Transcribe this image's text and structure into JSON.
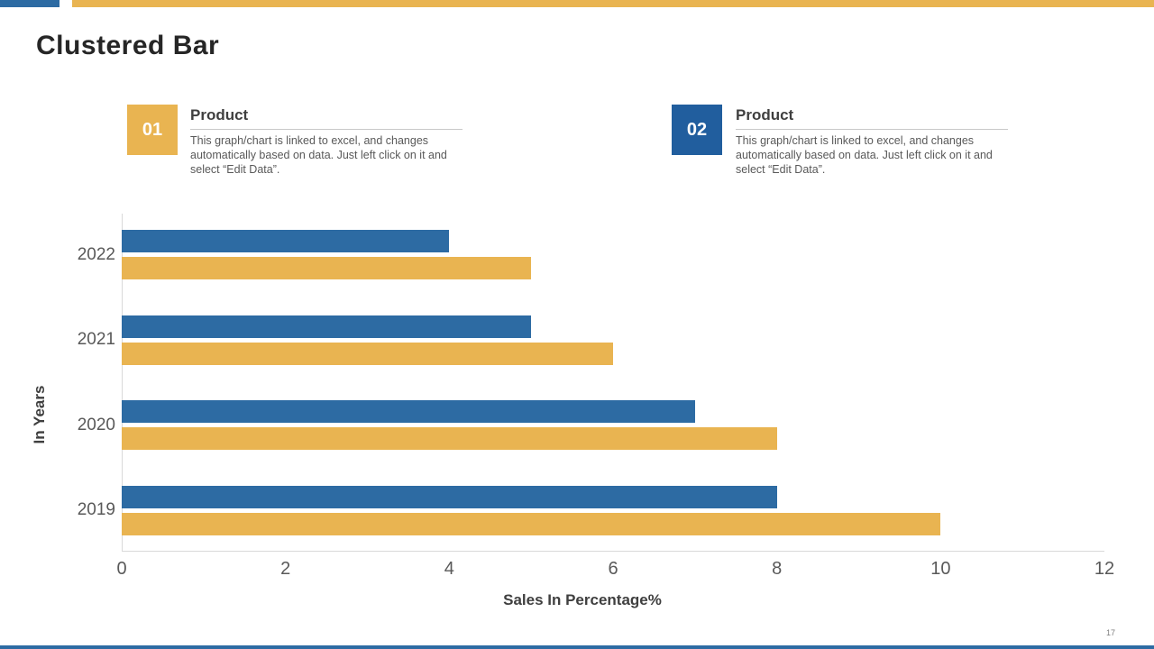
{
  "slide": {
    "title": "Clustered Bar",
    "page_number": "17"
  },
  "colors": {
    "blue": "#2D6BA3",
    "legend_blue": "#215E9E",
    "yellow": "#E9B451"
  },
  "legend": [
    {
      "number": "01",
      "heading": "Product",
      "body": "This graph/chart is linked to excel,  and changes automatically based on data. Just left click on it and select “Edit Data”."
    },
    {
      "number": "02",
      "heading": "Product",
      "body": "This graph/chart is linked to excel,  and changes automatically based on data. Just left click on it and select “Edit Data”."
    }
  ],
  "chart_data": {
    "type": "bar",
    "orientation": "horizontal",
    "title": "Clustered Bar",
    "categories": [
      "2022",
      "2021",
      "2020",
      "2019"
    ],
    "series": [
      {
        "name": "Product 02",
        "color": "#2D6BA3",
        "values": [
          4,
          5,
          7,
          8
        ]
      },
      {
        "name": "Product 01",
        "color": "#E9B451",
        "values": [
          5,
          6,
          8,
          10
        ]
      }
    ],
    "xlabel": "Sales In Percentage%",
    "ylabel": "In Years",
    "xlim": [
      0,
      12
    ],
    "xticks": [
      0,
      2,
      4,
      6,
      8,
      10,
      12
    ],
    "grid": false,
    "legend_position": "top"
  }
}
